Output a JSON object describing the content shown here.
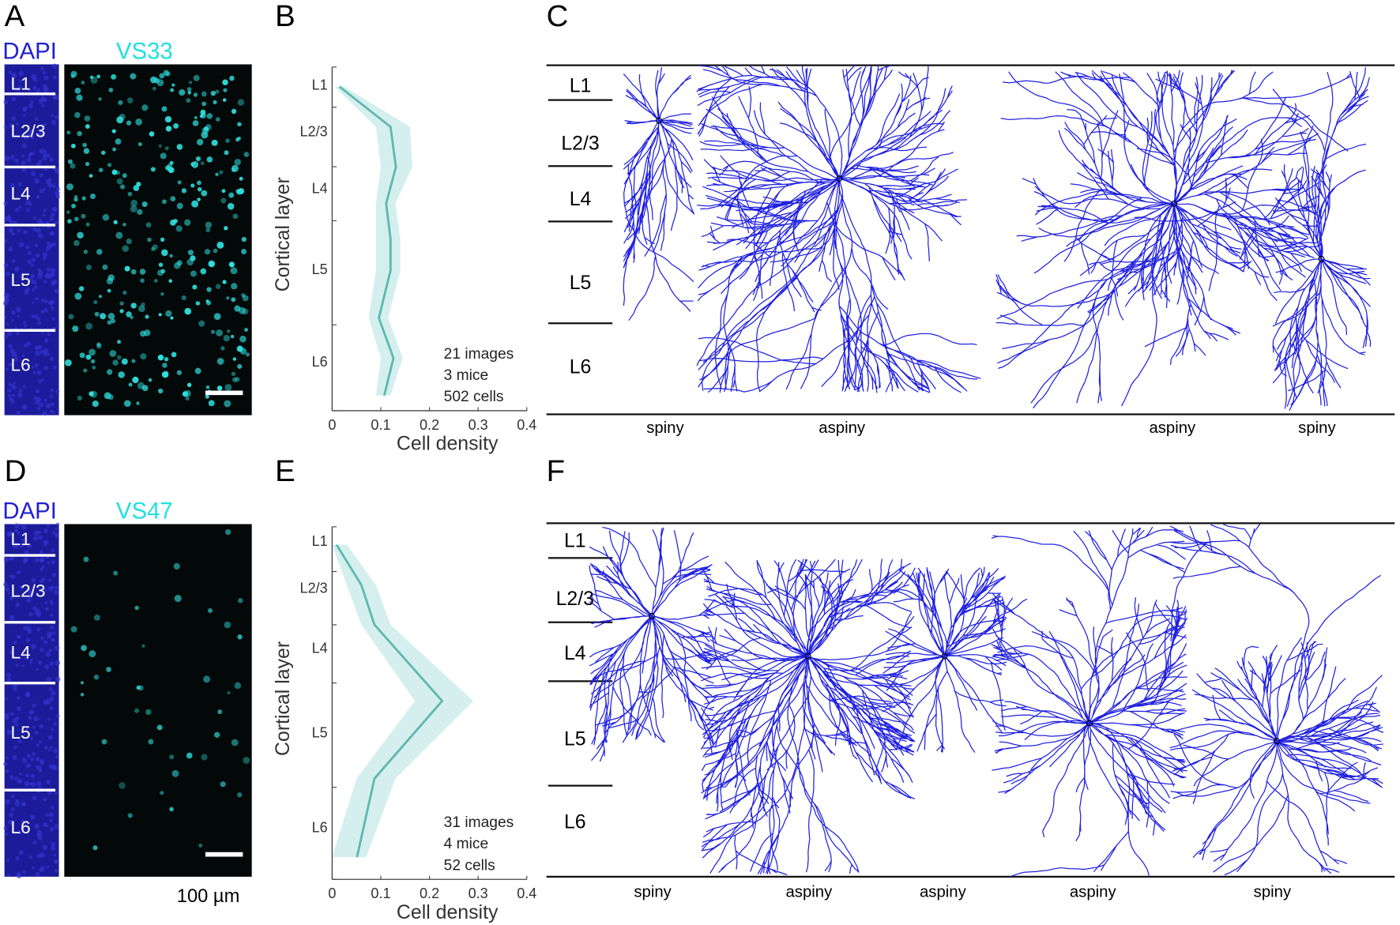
{
  "panels": {
    "A": {
      "letter": "A",
      "stain": "DAPI",
      "marker": "VS33",
      "layers": [
        "L1",
        "L2/3",
        "L4",
        "L5",
        "L6"
      ]
    },
    "B": {
      "letter": "B"
    },
    "C": {
      "letter": "C",
      "layers": [
        "L1",
        "L2/3",
        "L4",
        "L5",
        "L6"
      ],
      "cells": [
        "spiny",
        "aspiny",
        "aspiny",
        "spiny"
      ]
    },
    "D": {
      "letter": "D",
      "stain": "DAPI",
      "marker": "VS47",
      "layers": [
        "L1",
        "L2/3",
        "L4",
        "L5",
        "L6"
      ],
      "scale": "100 µm"
    },
    "E": {
      "letter": "E"
    },
    "F": {
      "letter": "F",
      "layers": [
        "L1",
        "L2/3",
        "L4",
        "L5",
        "L6"
      ],
      "cells": [
        "spiny",
        "aspiny",
        "aspiny",
        "aspiny",
        "spiny"
      ]
    }
  },
  "chart_data": [
    {
      "type": "line",
      "xlabel": "Cell density",
      "ylabel": "Cortical layer",
      "notes": [
        "21 images",
        "3 mice",
        "502 cells"
      ],
      "color": "#5fb8b0",
      "band_color": "#d5efee",
      "y": [
        0.057,
        0.174,
        0.291,
        0.397,
        0.501,
        0.592,
        0.73,
        0.847,
        0.956
      ],
      "values": [
        0.015,
        0.12,
        0.131,
        0.111,
        0.12,
        0.12,
        0.096,
        0.126,
        0.107
      ],
      "band_low": [
        0.005,
        0.09,
        0.1,
        0.09,
        0.09,
        0.09,
        0.075,
        0.1,
        0.09
      ],
      "band_high": [
        0.025,
        0.16,
        0.165,
        0.13,
        0.14,
        0.14,
        0.115,
        0.145,
        0.12
      ],
      "xlim": [
        0,
        0.4
      ],
      "xticks": [
        0,
        0.1,
        0.2,
        0.3,
        0.4
      ],
      "ylim": [
        0,
        1
      ],
      "y_inverted": true,
      "yticks": [
        {
          "value": 0.055,
          "label": "L1"
        },
        {
          "value": 0.19,
          "label": "L2/3"
        },
        {
          "value": 0.356,
          "label": "L4"
        },
        {
          "value": 0.592,
          "label": "L5"
        },
        {
          "value": 0.86,
          "label": "L6"
        }
      ],
      "minor_yticks": [
        0,
        0.117,
        0.29,
        0.447,
        0.75,
        1
      ]
    },
    {
      "type": "line",
      "xlabel": "Cell density",
      "ylabel": "Cortical layer",
      "notes": [
        "31 images",
        "4 mice",
        "52 cells"
      ],
      "color": "#5fb8b0",
      "band_color": "#d5efee",
      "y": [
        0.051,
        0.165,
        0.278,
        0.494,
        0.714,
        0.937
      ],
      "values": [
        0.009,
        0.06,
        0.087,
        0.226,
        0.087,
        0.051
      ],
      "band_low": [
        0,
        0.03,
        0.06,
        0.17,
        0.05,
        0
      ],
      "band_high": [
        0.03,
        0.09,
        0.12,
        0.29,
        0.13,
        0.07
      ],
      "xlim": [
        0,
        0.4
      ],
      "xticks": [
        0,
        0.1,
        0.2,
        0.3,
        0.4
      ],
      "ylim": [
        0,
        1
      ],
      "y_inverted": true,
      "yticks": [
        {
          "value": 0.043,
          "label": "L1"
        },
        {
          "value": 0.177,
          "label": "L2/3"
        },
        {
          "value": 0.347,
          "label": "L4"
        },
        {
          "value": 0.587,
          "label": "L5"
        },
        {
          "value": 0.856,
          "label": "L6"
        }
      ],
      "minor_yticks": [
        0,
        0.127,
        0.278,
        0.443,
        0.739,
        1
      ]
    }
  ]
}
